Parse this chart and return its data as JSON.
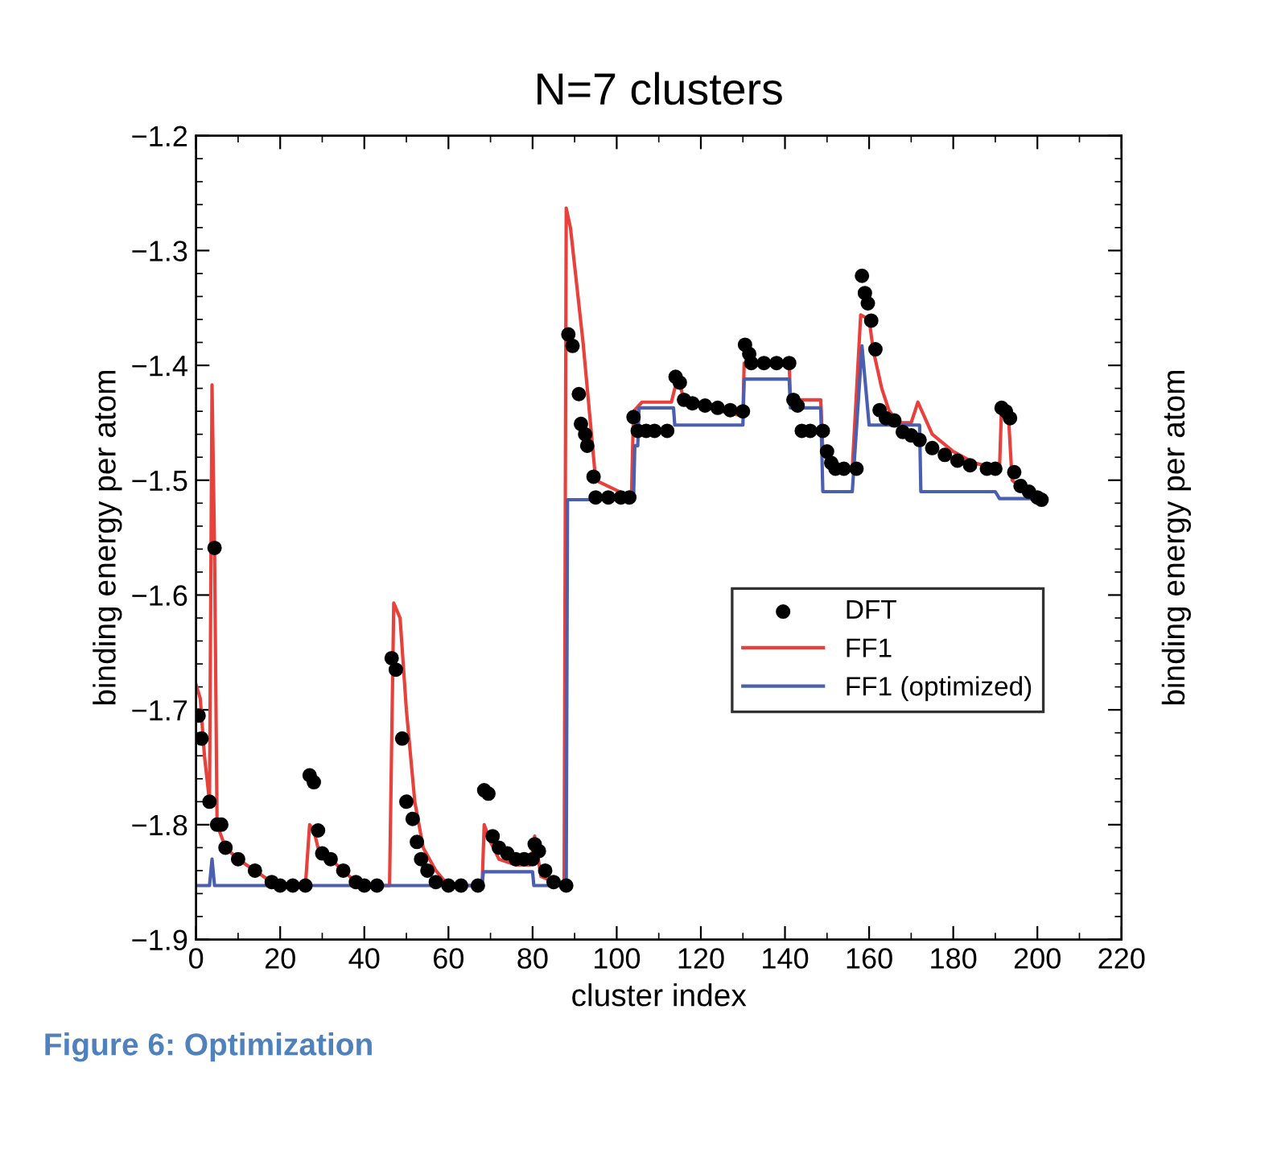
{
  "chart_data": {
    "type": "line",
    "title": "N=7 clusters",
    "xlabel": "cluster index",
    "ylabel": "binding energy per atom",
    "y2label": "binding energy per atom",
    "annotations": [
      "Figure 6: Optimization"
    ],
    "xlim": [
      0,
      220
    ],
    "xticks": [
      0,
      20,
      40,
      60,
      80,
      100,
      120,
      140,
      160,
      180,
      200,
      220
    ],
    "ylim": [
      -1.9,
      -1.2
    ],
    "yticks": [
      -1.9,
      -1.8,
      -1.7,
      -1.6,
      -1.5,
      -1.4,
      -1.3,
      -1.2
    ],
    "grid": false,
    "legend": "center right",
    "series": [
      {
        "name": "DFT",
        "type": "scatter",
        "color": "#000000",
        "marker": "circle",
        "x": [
          0.6,
          1.3,
          3.2,
          4.4,
          5,
          6,
          7,
          10,
          14,
          18,
          20,
          23,
          26,
          27,
          28,
          29,
          30,
          32,
          35,
          38,
          40,
          43,
          46.5,
          47.5,
          49,
          50,
          51.5,
          52.5,
          53.5,
          55,
          57,
          60,
          63,
          67,
          68.5,
          69.5,
          70.5,
          72,
          74,
          76,
          78,
          80,
          80.5,
          81.5,
          83,
          85,
          88,
          88.5,
          89.5,
          91,
          91.5,
          92.5,
          93,
          94.5,
          95,
          98,
          101,
          103,
          104,
          105,
          107,
          109,
          112,
          114,
          115,
          116,
          118,
          121,
          124,
          127,
          130,
          130.5,
          131.5,
          132,
          135,
          138,
          141,
          142,
          143,
          144,
          146,
          149,
          150,
          151,
          152,
          154,
          157,
          158.3,
          159,
          159.7,
          160.5,
          161.5,
          162.5,
          164,
          166,
          168,
          170,
          172,
          175,
          178,
          181,
          184,
          188,
          190,
          191.5,
          192.5,
          193.5,
          194.5,
          196,
          198,
          200,
          201
        ],
        "values": [
          -1.705,
          -1.725,
          -1.78,
          -1.559,
          -1.8,
          -1.8,
          -1.82,
          -1.83,
          -1.84,
          -1.85,
          -1.853,
          -1.853,
          -1.853,
          -1.757,
          -1.763,
          -1.805,
          -1.825,
          -1.83,
          -1.84,
          -1.85,
          -1.853,
          -1.853,
          -1.655,
          -1.665,
          -1.725,
          -1.78,
          -1.795,
          -1.815,
          -1.83,
          -1.84,
          -1.85,
          -1.853,
          -1.853,
          -1.853,
          -1.77,
          -1.773,
          -1.81,
          -1.82,
          -1.825,
          -1.83,
          -1.83,
          -1.83,
          -1.817,
          -1.823,
          -1.84,
          -1.85,
          -1.853,
          -1.373,
          -1.383,
          -1.425,
          -1.451,
          -1.46,
          -1.47,
          -1.497,
          -1.515,
          -1.515,
          -1.515,
          -1.515,
          -1.445,
          -1.457,
          -1.457,
          -1.457,
          -1.457,
          -1.41,
          -1.415,
          -1.43,
          -1.433,
          -1.435,
          -1.437,
          -1.439,
          -1.44,
          -1.382,
          -1.39,
          -1.398,
          -1.398,
          -1.398,
          -1.398,
          -1.43,
          -1.435,
          -1.457,
          -1.457,
          -1.457,
          -1.475,
          -1.485,
          -1.49,
          -1.49,
          -1.49,
          -1.322,
          -1.337,
          -1.346,
          -1.361,
          -1.386,
          -1.439,
          -1.446,
          -1.448,
          -1.458,
          -1.461,
          -1.465,
          -1.472,
          -1.478,
          -1.483,
          -1.487,
          -1.49,
          -1.49,
          -1.437,
          -1.44,
          -1.446,
          -1.493,
          -1.505,
          -1.51,
          -1.515,
          -1.517
        ]
      },
      {
        "name": "FF1",
        "color": "#e8403a",
        "marker": "none",
        "line_style": "solid",
        "x": [
          0,
          1,
          2,
          3.2,
          3.8,
          4.4,
          5,
          7,
          10,
          14,
          18,
          20,
          26,
          27,
          28,
          29,
          32,
          35,
          38,
          40,
          46,
          47,
          48.5,
          50,
          52,
          54,
          57,
          60,
          68,
          68.5,
          70,
          72,
          76,
          79.5,
          80.5,
          82,
          85,
          87.5,
          88,
          89,
          92,
          95,
          103.5,
          104,
          106,
          113,
          114.5,
          116,
          120,
          125,
          130,
          130.3,
          141,
          141.3,
          148.5,
          149,
          151,
          156,
          158,
          160,
          161,
          163,
          164.7,
          167,
          170,
          171.6,
          175,
          180,
          185,
          191,
          191.5,
          193,
          194,
          197,
          201
        ],
        "values": [
          -1.678,
          -1.69,
          -1.74,
          -1.78,
          -1.417,
          -1.56,
          -1.8,
          -1.82,
          -1.83,
          -1.84,
          -1.85,
          -1.853,
          -1.853,
          -1.8,
          -1.805,
          -1.82,
          -1.83,
          -1.84,
          -1.85,
          -1.853,
          -1.853,
          -1.607,
          -1.62,
          -1.7,
          -1.78,
          -1.82,
          -1.84,
          -1.853,
          -1.853,
          -1.8,
          -1.815,
          -1.83,
          -1.835,
          -1.835,
          -1.81,
          -1.845,
          -1.85,
          -1.853,
          -1.263,
          -1.28,
          -1.38,
          -1.5,
          -1.515,
          -1.44,
          -1.432,
          -1.432,
          -1.41,
          -1.43,
          -1.435,
          -1.44,
          -1.444,
          -1.398,
          -1.398,
          -1.43,
          -1.43,
          -1.475,
          -1.49,
          -1.49,
          -1.356,
          -1.36,
          -1.387,
          -1.42,
          -1.439,
          -1.45,
          -1.45,
          -1.432,
          -1.46,
          -1.475,
          -1.485,
          -1.49,
          -1.434,
          -1.436,
          -1.5,
          -1.51,
          -1.515
        ]
      },
      {
        "name": "FF1 (optimized)",
        "color": "#4a5fb0",
        "marker": "none",
        "line_style": "solid",
        "x": [
          0,
          3.2,
          3.8,
          4.4,
          68,
          68.3,
          80,
          80.3,
          88,
          88.3,
          104,
          104.3,
          105,
          105.3,
          113.5,
          113.8,
          130,
          130.3,
          141,
          141.3,
          148.5,
          149,
          156,
          158.3,
          160,
          172,
          172.3,
          190,
          191,
          201
        ],
        "values": [
          -1.853,
          -1.853,
          -1.83,
          -1.853,
          -1.853,
          -1.841,
          -1.841,
          -1.853,
          -1.853,
          -1.517,
          -1.517,
          -1.47,
          -1.47,
          -1.437,
          -1.437,
          -1.452,
          -1.452,
          -1.412,
          -1.412,
          -1.437,
          -1.437,
          -1.51,
          -1.51,
          -1.383,
          -1.452,
          -1.452,
          -1.51,
          -1.51,
          -1.516,
          -1.516
        ]
      }
    ]
  }
}
